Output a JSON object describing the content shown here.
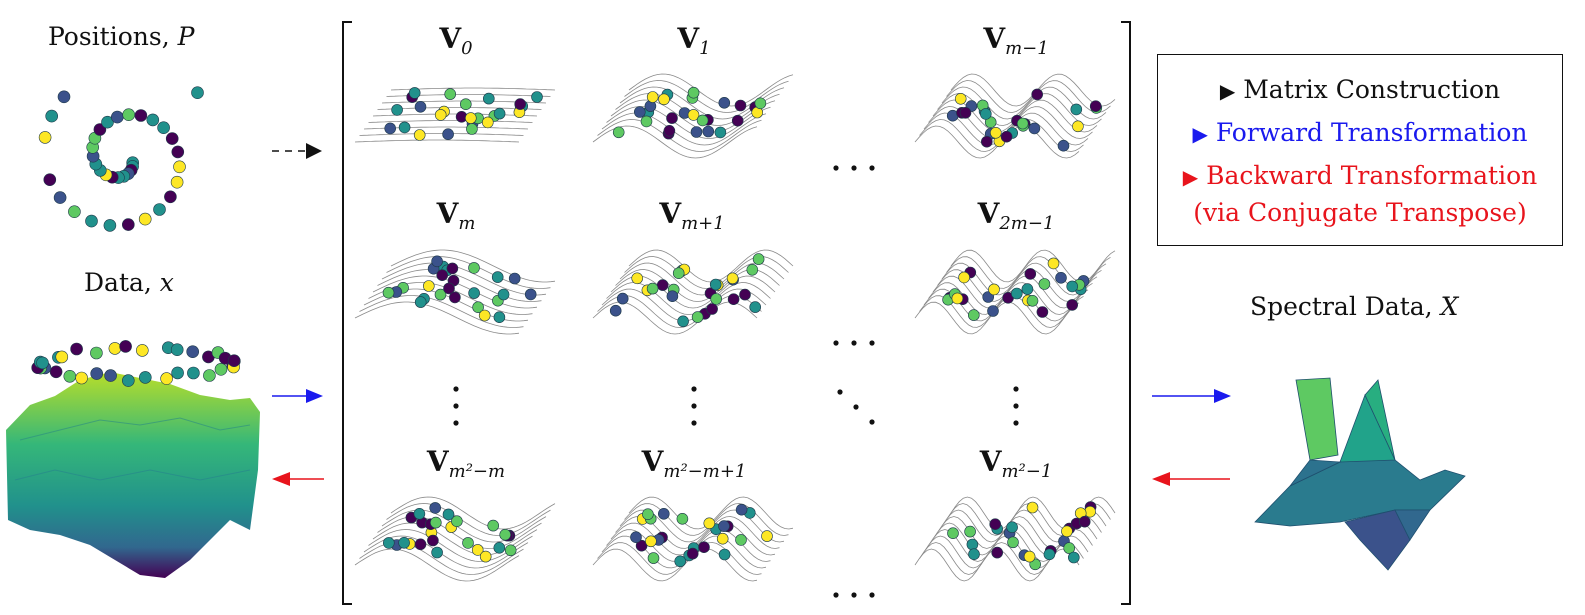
{
  "left": {
    "positions_label": "Positions, ",
    "positions_symbol": "P",
    "data_label": "Data, ",
    "data_symbol": "x"
  },
  "right": {
    "spectral_label": "Spectral Data, ",
    "spectral_symbol": "X"
  },
  "matrix": {
    "cells": [
      {
        "base": "V",
        "sub": "0"
      },
      {
        "base": "V",
        "sub": "1"
      },
      {
        "base": "V",
        "sub": "m−1"
      },
      {
        "base": "V",
        "sub": "m"
      },
      {
        "base": "V",
        "sub": "m+1"
      },
      {
        "base": "V",
        "sub": "2m−1"
      },
      {
        "base": "V",
        "sub": "m²−m"
      },
      {
        "base": "V",
        "sub": "m²−m+1"
      },
      {
        "base": "V",
        "sub": "m²−1"
      }
    ]
  },
  "legend": {
    "items": [
      {
        "marker": "▶",
        "label": "Matrix Construction",
        "color": "#111111"
      },
      {
        "marker": "▶",
        "label": "Forward Transformation",
        "color": "#1a1aee"
      },
      {
        "marker": "▶",
        "label": "Backward Transformation",
        "color": "#e8141c"
      }
    ],
    "note": "(via Conjugate Transpose)"
  },
  "colors": {
    "viridis": [
      "#440154",
      "#3b528b",
      "#21918c",
      "#5ec962",
      "#fde725"
    ],
    "forward": "#1a1aee",
    "backward": "#e8141c"
  }
}
